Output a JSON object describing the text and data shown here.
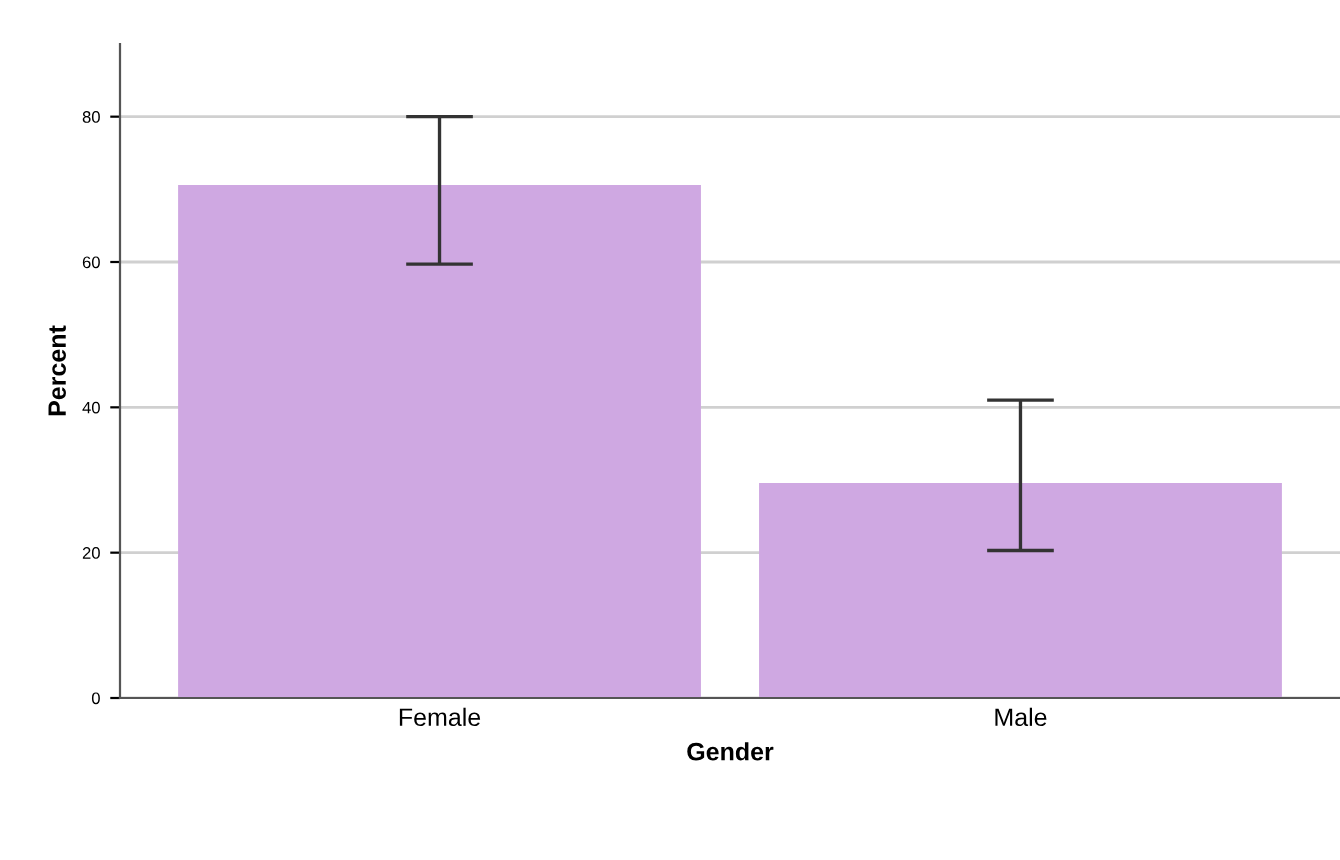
{
  "chart_data": {
    "type": "bar",
    "xlabel": "Gender",
    "ylabel": "Percent",
    "categories": [
      "Female",
      "Male"
    ],
    "values": [
      70.6,
      29.6
    ],
    "errors": [
      [
        59.7,
        80.0
      ],
      [
        20.3,
        41.0
      ]
    ],
    "color": "#cfa8e2",
    "ylim": [
      0,
      90
    ],
    "yticks": [
      0,
      20,
      40,
      60,
      80
    ],
    "grid": "y"
  }
}
